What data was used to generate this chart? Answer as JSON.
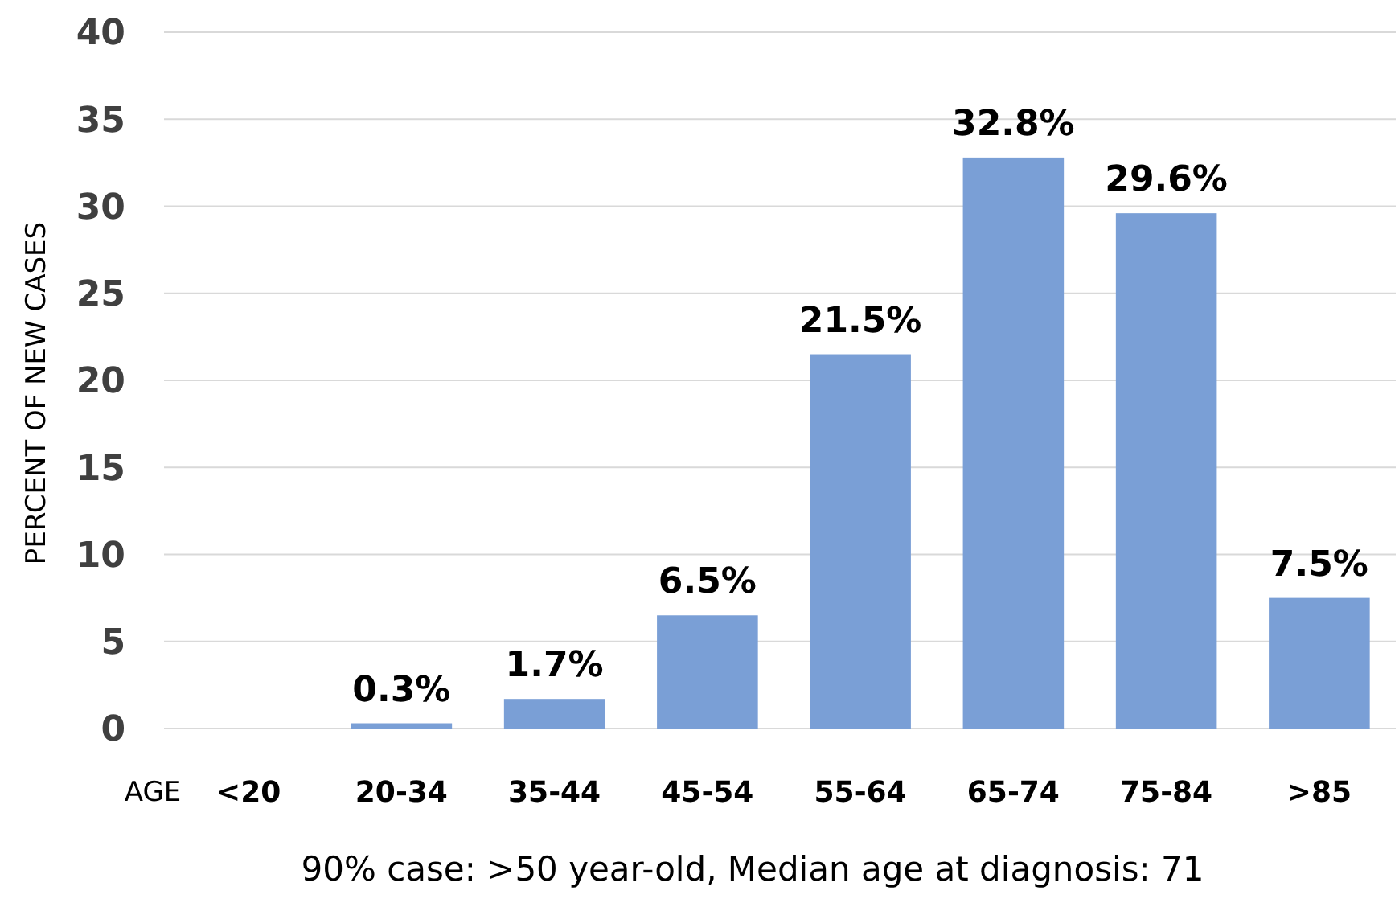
{
  "chart_data": {
    "type": "bar",
    "ylabel": "PERCENT OF NEW CASES",
    "xlabel": "AGE",
    "categories": [
      "<20",
      "20-34",
      "35-44",
      "45-54",
      "55-64",
      "65-74",
      "75-84",
      ">85"
    ],
    "values": [
      0,
      0.3,
      1.7,
      6.5,
      21.5,
      32.8,
      29.6,
      7.5
    ],
    "value_labels": [
      null,
      "0.3%",
      "1.7%",
      "6.5%",
      "21.5%",
      "32.8%",
      "29.6%",
      "7.5%"
    ],
    "color": "#7a9fd6",
    "ylim": [
      0,
      40
    ],
    "yticks": [
      0,
      5,
      10,
      15,
      20,
      25,
      30,
      35,
      40
    ],
    "grid": "y",
    "annotations": [
      "90% case: >50 year-old, Median age at diagnosis: 71"
    ]
  }
}
